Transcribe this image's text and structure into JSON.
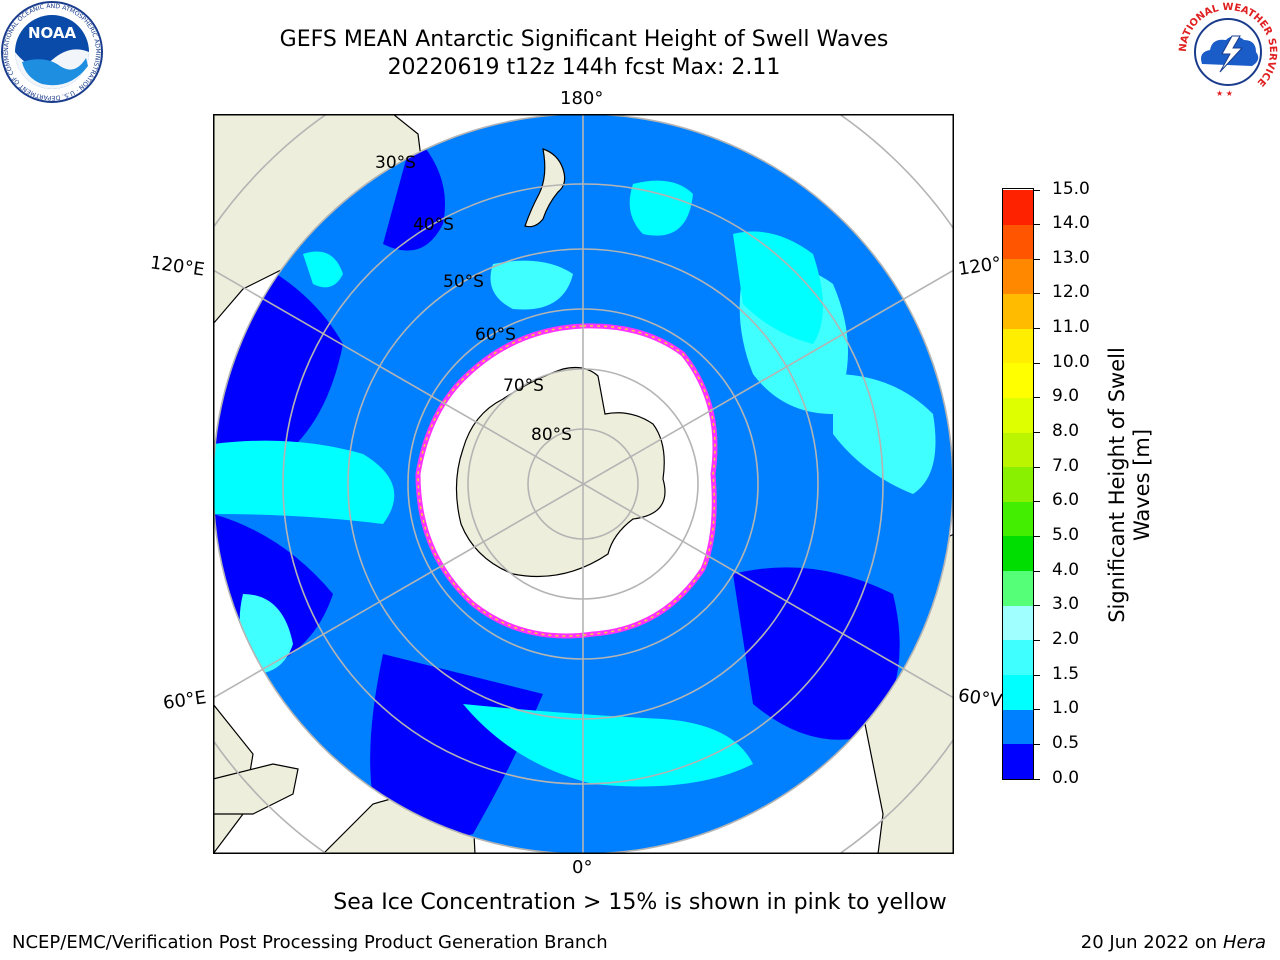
{
  "header": {
    "title_line1": "GEFS MEAN Antarctic Significant Height of Swell Waves",
    "title_line2": "20220619 t12z 144h fcst   Max: 2.11"
  },
  "logos": {
    "noaa_text": "NOAA",
    "noaa_ring_text": "NATIONAL OCEANIC AND ATMOSPHERIC ADMINISTRATION · U.S. DEPARTMENT OF COMMERCE",
    "nws_ring_text": "NATIONAL WEATHER SERVICE"
  },
  "map": {
    "projection": "south-polar-stereographic",
    "longitude_labels": {
      "top": "180°",
      "bottom": "0°",
      "upper_left": "120°E",
      "lower_left": "60°E",
      "upper_right": "120°",
      "lower_right": "60°V"
    },
    "latitude_labels": [
      "30°S",
      "40°S",
      "50°S",
      "60°S",
      "70°S",
      "80°S"
    ],
    "colors": {
      "land": "#eeeedc",
      "ice": "#ffffff",
      "ice_edge": [
        "#ff33ff",
        "#ff66cc",
        "#ffcc33"
      ],
      "grid": "#b4b4b4",
      "coast": "#000000"
    }
  },
  "colorbar": {
    "label_line1": "Significant Height of Swell",
    "label_line2": "Waves [m]",
    "ticks": [
      "0.0",
      "0.5",
      "1.0",
      "1.5",
      "2.0",
      "3.0",
      "4.0",
      "5.0",
      "6.0",
      "7.0",
      "8.0",
      "9.0",
      "10.0",
      "11.0",
      "12.0",
      "13.0",
      "14.0",
      "15.0"
    ],
    "colors": [
      "#0000ff",
      "#0080ff",
      "#00ffff",
      "#40ffff",
      "#a0ffff",
      "#55ff77",
      "#00dd00",
      "#44ee00",
      "#88f000",
      "#bbf500",
      "#ddff00",
      "#ffff00",
      "#ffee00",
      "#ffbb00",
      "#ff8800",
      "#ff5500",
      "#ff2200"
    ]
  },
  "footer": {
    "caption": "Sea Ice Concentration > 15% is shown in pink to yellow",
    "left": "NCEP/EMC/Verification Post Processing Product Generation Branch",
    "right_date": "20 Jun 2022 on",
    "right_host": "Hera"
  }
}
